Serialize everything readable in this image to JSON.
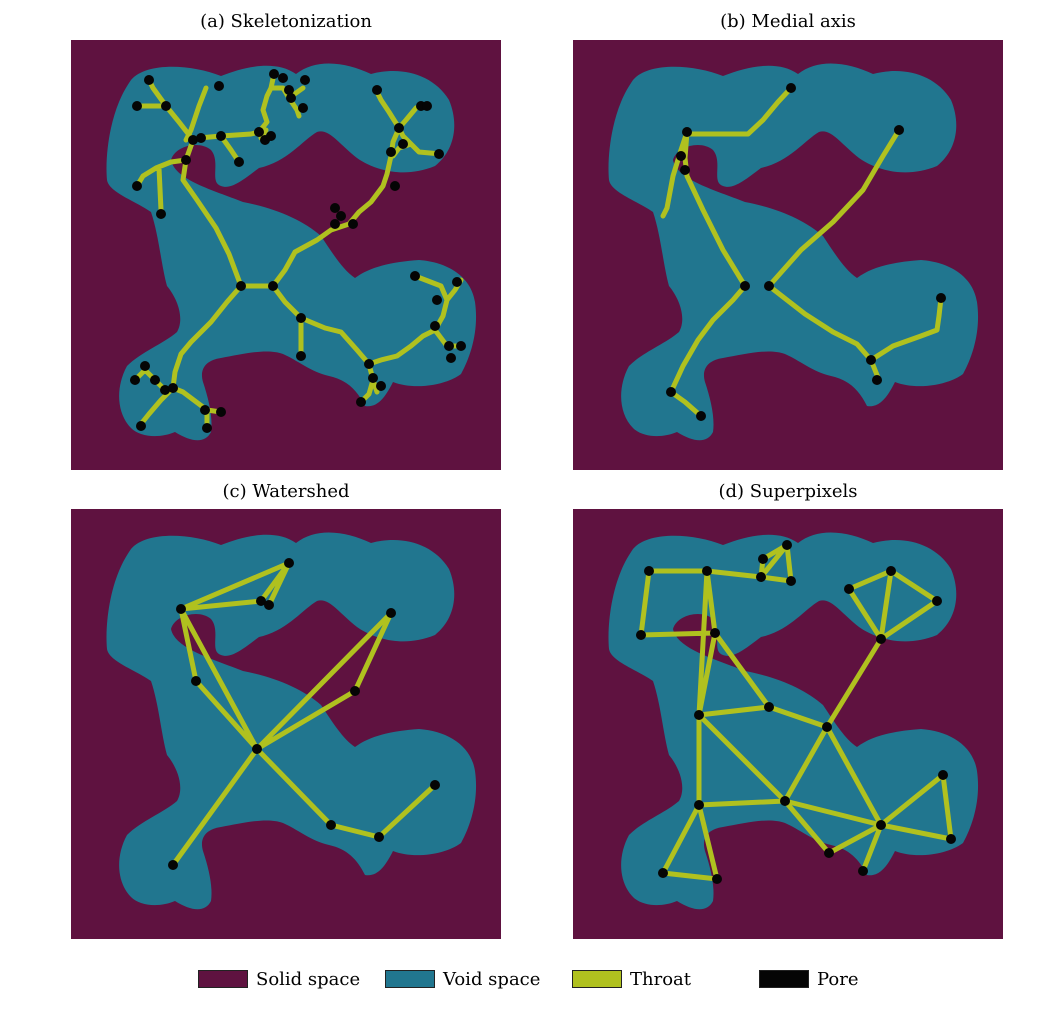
{
  "colors": {
    "solid": "#5f1240",
    "void": "#21768f",
    "throat": "#b0c11f",
    "pore": "#050505"
  },
  "panels": [
    {
      "title": "(a) Skeletonization"
    },
    {
      "title": "(b) Medial axis"
    },
    {
      "title": "(c) Watershed"
    },
    {
      "title": "(d) Superpixels"
    }
  ],
  "legend": [
    {
      "label": "Solid space",
      "color": "#5f1240"
    },
    {
      "label": "Void space",
      "color": "#21768f"
    },
    {
      "label": "Throat",
      "color": "#b0c11f"
    },
    {
      "label": "Pore",
      "color": "#050505"
    }
  ]
}
